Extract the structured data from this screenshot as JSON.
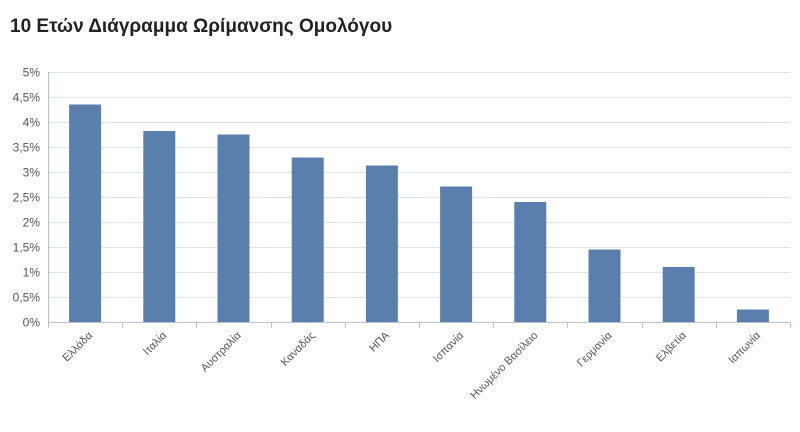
{
  "chart_data": {
    "type": "bar",
    "title": "10 Ετών Διάγραμμα Ωρίμανσης Ομολόγου",
    "xlabel": "",
    "ylabel": "",
    "categories": [
      "Ελλάδα",
      "Ιταλία",
      "Αυστραλία",
      "Καναδάς",
      "ΗΠΑ",
      "Ισπανία",
      "Ηνωμένο Βασίλειο",
      "Γερμανία",
      "Ελβετία",
      "Ιαπωνία"
    ],
    "values": [
      4.35,
      3.82,
      3.75,
      3.29,
      3.13,
      2.71,
      2.4,
      1.45,
      1.1,
      0.25
    ],
    "unit": "%",
    "ylim": [
      0,
      5
    ],
    "yticks": [
      "0%",
      "0,5%",
      "1%",
      "1,5%",
      "2%",
      "2,5%",
      "3%",
      "3,5%",
      "4%",
      "4,5%",
      "5%"
    ],
    "grid": true,
    "legend": "none",
    "colors": {
      "bar": "#5b7fad",
      "grid": "#dde3ea",
      "axis": "#b8c2ce"
    }
  }
}
